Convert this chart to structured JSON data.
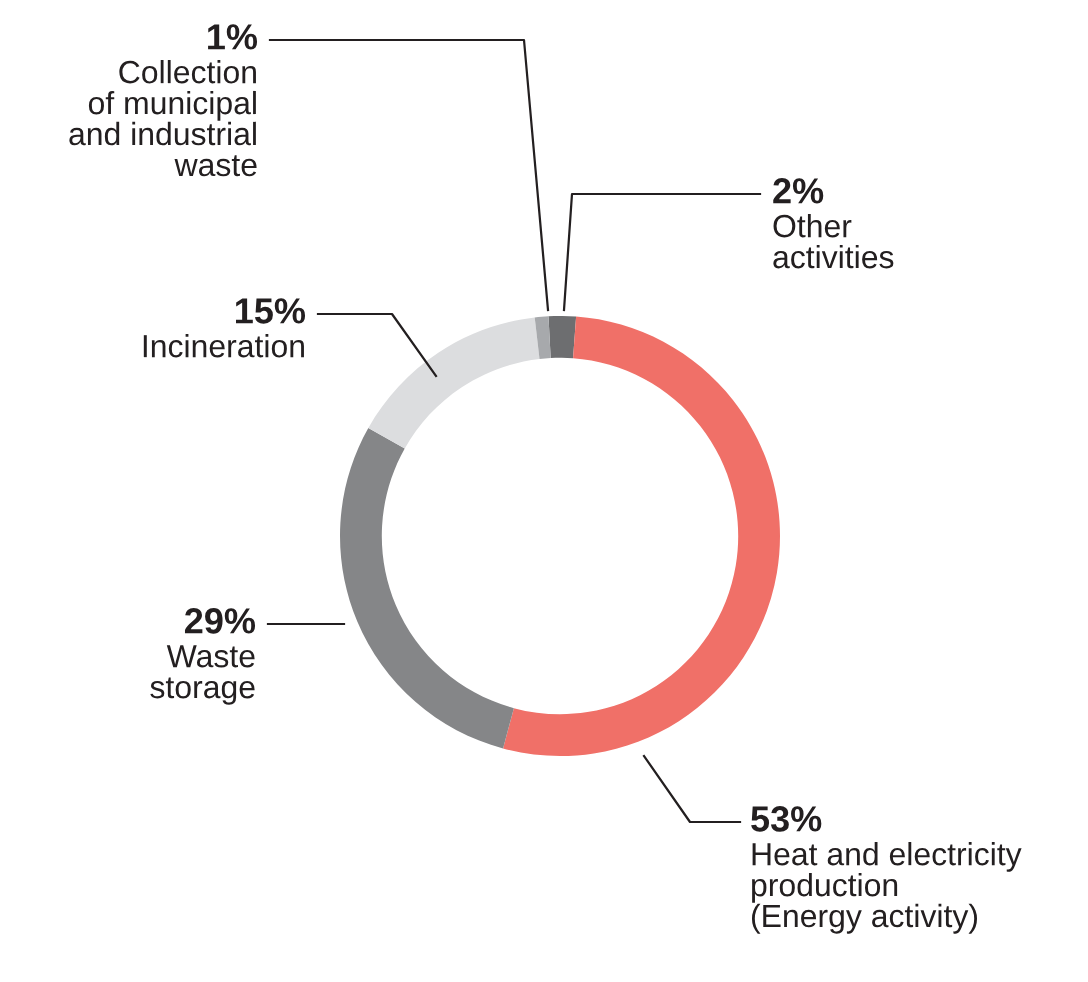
{
  "chart_data": {
    "type": "donut",
    "categories": [
      "Other\nactivities",
      "Heat and electricity\nproduction\n(Energy activity)",
      "Waste\nstorage",
      "Incineration",
      "Collection\nof municipal\nand industrial\nwaste"
    ],
    "values": [
      2,
      53,
      29,
      15,
      1
    ],
    "value_labels": [
      "2%",
      "53%",
      "29%",
      "15%",
      "1%"
    ],
    "colors": [
      "#6d6e70",
      "#f07068",
      "#858688",
      "#dcdddf",
      "#a7a9ac"
    ]
  }
}
